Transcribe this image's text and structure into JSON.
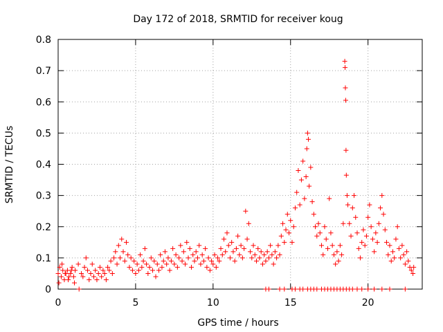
{
  "chart_data": {
    "type": "scatter",
    "title": "Day 172 of 2018, SRMTID for receiver koug",
    "xlabel": "GPS time / hours",
    "ylabel": "SRMTID / TECUs",
    "xlim": [
      0,
      23.5
    ],
    "ylim": [
      0,
      0.8
    ],
    "xticks": [
      0,
      5,
      10,
      15,
      20
    ],
    "xtick_labels": [
      "0",
      "5",
      "10",
      "15",
      "20"
    ],
    "yticks": [
      0,
      0.1,
      0.2,
      0.3,
      0.4,
      0.5,
      0.6,
      0.7,
      0.8
    ],
    "ytick_labels": [
      "0",
      "0.1",
      "0.2",
      "0.3",
      "0.4",
      "0.5",
      "0.6",
      "0.7",
      "0.8"
    ],
    "grid": true,
    "marker": "+",
    "color": "#ff0000",
    "series": [
      {
        "name": "SRMTID",
        "points": [
          [
            0.0,
            0.05
          ],
          [
            0.1,
            0.07
          ],
          [
            0.2,
            0.04
          ],
          [
            0.3,
            0.06
          ],
          [
            0.4,
            0.03
          ],
          [
            0.5,
            0.05
          ],
          [
            0.6,
            0.06
          ],
          [
            0.7,
            0.04
          ],
          [
            0.8,
            0.05
          ],
          [
            0.9,
            0.07
          ],
          [
            1.0,
            0.04
          ],
          [
            1.1,
            0.06
          ],
          [
            0.05,
            0.02
          ],
          [
            0.25,
            0.08
          ],
          [
            0.45,
            0.05
          ],
          [
            0.65,
            0.03
          ],
          [
            0.85,
            0.06
          ],
          [
            1.05,
            0.02
          ],
          [
            1.3,
            0.08
          ],
          [
            1.5,
            0.05
          ],
          [
            1.6,
            0.04
          ],
          [
            1.7,
            0.07
          ],
          [
            1.8,
            0.1
          ],
          [
            1.9,
            0.06
          ],
          [
            2.0,
            0.03
          ],
          [
            2.1,
            0.05
          ],
          [
            2.2,
            0.08
          ],
          [
            2.3,
            0.04
          ],
          [
            2.4,
            0.06
          ],
          [
            2.5,
            0.03
          ],
          [
            2.6,
            0.05
          ],
          [
            2.7,
            0.07
          ],
          [
            2.8,
            0.04
          ],
          [
            2.9,
            0.06
          ],
          [
            3.0,
            0.05
          ],
          [
            3.1,
            0.03
          ],
          [
            3.2,
            0.07
          ],
          [
            3.3,
            0.06
          ],
          [
            3.4,
            0.09
          ],
          [
            3.5,
            0.05
          ],
          [
            3.6,
            0.1
          ],
          [
            3.7,
            0.12
          ],
          [
            3.8,
            0.08
          ],
          [
            3.9,
            0.14
          ],
          [
            4.0,
            0.1
          ],
          [
            4.1,
            0.16
          ],
          [
            4.2,
            0.12
          ],
          [
            4.3,
            0.09
          ],
          [
            4.4,
            0.15
          ],
          [
            4.5,
            0.11
          ],
          [
            4.6,
            0.07
          ],
          [
            4.7,
            0.1
          ],
          [
            4.8,
            0.06
          ],
          [
            4.9,
            0.09
          ],
          [
            5.0,
            0.05
          ],
          [
            5.1,
            0.08
          ],
          [
            5.2,
            0.06
          ],
          [
            5.3,
            0.11
          ],
          [
            5.4,
            0.07
          ],
          [
            5.5,
            0.09
          ],
          [
            5.6,
            0.13
          ],
          [
            5.7,
            0.08
          ],
          [
            5.8,
            0.05
          ],
          [
            5.9,
            0.07
          ],
          [
            6.0,
            0.1
          ],
          [
            6.1,
            0.06
          ],
          [
            6.2,
            0.09
          ],
          [
            6.3,
            0.04
          ],
          [
            6.4,
            0.08
          ],
          [
            6.5,
            0.06
          ],
          [
            6.6,
            0.11
          ],
          [
            6.7,
            0.07
          ],
          [
            6.8,
            0.09
          ],
          [
            6.9,
            0.12
          ],
          [
            7.0,
            0.08
          ],
          [
            7.1,
            0.1
          ],
          [
            7.2,
            0.06
          ],
          [
            7.3,
            0.09
          ],
          [
            7.4,
            0.13
          ],
          [
            7.5,
            0.08
          ],
          [
            7.6,
            0.11
          ],
          [
            7.7,
            0.07
          ],
          [
            7.8,
            0.1
          ],
          [
            7.9,
            0.14
          ],
          [
            8.0,
            0.09
          ],
          [
            8.1,
            0.12
          ],
          [
            8.2,
            0.08
          ],
          [
            8.3,
            0.15
          ],
          [
            8.4,
            0.1
          ],
          [
            8.5,
            0.13
          ],
          [
            8.6,
            0.07
          ],
          [
            8.7,
            0.11
          ],
          [
            8.8,
            0.09
          ],
          [
            8.9,
            0.12
          ],
          [
            9.0,
            0.1
          ],
          [
            9.1,
            0.14
          ],
          [
            9.2,
            0.08
          ],
          [
            9.3,
            0.11
          ],
          [
            9.4,
            0.09
          ],
          [
            9.5,
            0.13
          ],
          [
            9.6,
            0.07
          ],
          [
            9.7,
            0.1
          ],
          [
            9.8,
            0.06
          ],
          [
            9.9,
            0.09
          ],
          [
            10.0,
            0.08
          ],
          [
            10.1,
            0.11
          ],
          [
            10.2,
            0.07
          ],
          [
            10.3,
            0.1
          ],
          [
            10.4,
            0.09
          ],
          [
            10.5,
            0.13
          ],
          [
            10.6,
            0.11
          ],
          [
            10.7,
            0.16
          ],
          [
            10.8,
            0.12
          ],
          [
            10.9,
            0.18
          ],
          [
            11.0,
            0.14
          ],
          [
            11.1,
            0.1
          ],
          [
            11.2,
            0.15
          ],
          [
            11.3,
            0.12
          ],
          [
            11.4,
            0.09
          ],
          [
            11.5,
            0.13
          ],
          [
            11.6,
            0.17
          ],
          [
            11.7,
            0.11
          ],
          [
            11.8,
            0.14
          ],
          [
            11.9,
            0.1
          ],
          [
            12.0,
            0.13
          ],
          [
            12.1,
            0.25
          ],
          [
            12.2,
            0.16
          ],
          [
            12.3,
            0.21
          ],
          [
            12.4,
            0.12
          ],
          [
            12.5,
            0.1
          ],
          [
            12.6,
            0.14
          ],
          [
            12.7,
            0.11
          ],
          [
            12.8,
            0.09
          ],
          [
            12.9,
            0.13
          ],
          [
            13.0,
            0.1
          ],
          [
            13.1,
            0.12
          ],
          [
            13.2,
            0.08
          ],
          [
            13.3,
            0.11
          ],
          [
            13.4,
            0.09
          ],
          [
            13.5,
            0.12
          ],
          [
            13.6,
            0.1
          ],
          [
            13.7,
            0.14
          ],
          [
            13.8,
            0.11
          ],
          [
            13.9,
            0.08
          ],
          [
            14.0,
            0.12
          ],
          [
            14.1,
            0.1
          ],
          [
            14.2,
            0.14
          ],
          [
            14.3,
            0.11
          ],
          [
            14.4,
            0.17
          ],
          [
            14.5,
            0.21
          ],
          [
            14.6,
            0.15
          ],
          [
            14.7,
            0.19
          ],
          [
            14.8,
            0.24
          ],
          [
            14.9,
            0.18
          ],
          [
            15.0,
            0.22
          ],
          [
            15.1,
            0.15
          ],
          [
            15.2,
            0.2
          ],
          [
            15.3,
            0.26
          ],
          [
            15.4,
            0.31
          ],
          [
            15.5,
            0.38
          ],
          [
            15.6,
            0.27
          ],
          [
            15.7,
            0.35
          ],
          [
            15.8,
            0.41
          ],
          [
            15.9,
            0.29
          ],
          [
            16.0,
            0.36
          ],
          [
            16.05,
            0.45
          ],
          [
            16.1,
            0.5
          ],
          [
            16.15,
            0.48
          ],
          [
            16.2,
            0.33
          ],
          [
            16.3,
            0.39
          ],
          [
            16.4,
            0.28
          ],
          [
            16.5,
            0.24
          ],
          [
            16.6,
            0.2
          ],
          [
            16.7,
            0.17
          ],
          [
            16.8,
            0.21
          ],
          [
            16.9,
            0.18
          ],
          [
            17.0,
            0.14
          ],
          [
            17.1,
            0.11
          ],
          [
            17.2,
            0.2
          ],
          [
            17.3,
            0.16
          ],
          [
            17.4,
            0.13
          ],
          [
            17.5,
            0.29
          ],
          [
            17.6,
            0.18
          ],
          [
            17.7,
            0.14
          ],
          [
            17.8,
            0.11
          ],
          [
            17.9,
            0.08
          ],
          [
            18.0,
            0.12
          ],
          [
            18.1,
            0.09
          ],
          [
            18.2,
            0.14
          ],
          [
            18.3,
            0.11
          ],
          [
            18.4,
            0.21
          ],
          [
            18.5,
            0.73
          ],
          [
            18.52,
            0.71
          ],
          [
            18.54,
            0.645
          ],
          [
            18.56,
            0.605
          ],
          [
            18.58,
            0.445
          ],
          [
            18.6,
            0.365
          ],
          [
            18.65,
            0.3
          ],
          [
            18.7,
            0.27
          ],
          [
            18.8,
            0.21
          ],
          [
            18.9,
            0.17
          ],
          [
            19.0,
            0.26
          ],
          [
            19.1,
            0.3
          ],
          [
            19.2,
            0.23
          ],
          [
            19.3,
            0.18
          ],
          [
            19.4,
            0.13
          ],
          [
            19.5,
            0.1
          ],
          [
            19.6,
            0.15
          ],
          [
            19.7,
            0.19
          ],
          [
            19.8,
            0.14
          ],
          [
            19.9,
            0.17
          ],
          [
            20.0,
            0.23
          ],
          [
            20.1,
            0.27
          ],
          [
            20.2,
            0.2
          ],
          [
            20.3,
            0.16
          ],
          [
            20.4,
            0.12
          ],
          [
            20.5,
            0.18
          ],
          [
            20.6,
            0.15
          ],
          [
            20.7,
            0.21
          ],
          [
            20.8,
            0.26
          ],
          [
            20.9,
            0.3
          ],
          [
            21.0,
            0.24
          ],
          [
            21.1,
            0.19
          ],
          [
            21.2,
            0.15
          ],
          [
            21.3,
            0.11
          ],
          [
            21.4,
            0.14
          ],
          [
            21.5,
            0.09
          ],
          [
            21.6,
            0.12
          ],
          [
            21.7,
            0.1
          ],
          [
            21.8,
            0.16
          ],
          [
            21.9,
            0.2
          ],
          [
            22.0,
            0.13
          ],
          [
            22.1,
            0.1
          ],
          [
            22.2,
            0.14
          ],
          [
            22.3,
            0.11
          ],
          [
            22.4,
            0.08
          ],
          [
            22.5,
            0.12
          ],
          [
            22.6,
            0.09
          ],
          [
            22.7,
            0.07
          ],
          [
            22.8,
            0.06
          ],
          [
            22.9,
            0.05
          ],
          [
            22.95,
            0.07
          ],
          [
            1.35,
            0.0
          ],
          [
            13.4,
            0.0
          ],
          [
            13.6,
            0.0
          ],
          [
            14.3,
            0.0
          ],
          [
            14.6,
            0.0
          ],
          [
            15.1,
            0.0
          ],
          [
            15.3,
            0.0
          ],
          [
            15.6,
            0.0
          ],
          [
            15.8,
            0.0
          ],
          [
            16.1,
            0.0
          ],
          [
            16.3,
            0.0
          ],
          [
            16.5,
            0.0
          ],
          [
            16.7,
            0.0
          ],
          [
            17.0,
            0.0
          ],
          [
            17.2,
            0.0
          ],
          [
            17.4,
            0.0
          ],
          [
            17.6,
            0.0
          ],
          [
            17.8,
            0.0
          ],
          [
            18.0,
            0.0
          ],
          [
            18.2,
            0.0
          ],
          [
            18.4,
            0.0
          ],
          [
            18.6,
            0.0
          ],
          [
            18.8,
            0.0
          ],
          [
            19.0,
            0.0
          ],
          [
            19.3,
            0.0
          ],
          [
            19.6,
            0.0
          ],
          [
            20.0,
            0.0
          ],
          [
            20.4,
            0.0
          ],
          [
            20.9,
            0.0
          ],
          [
            21.4,
            0.0
          ],
          [
            22.4,
            0.0
          ]
        ]
      }
    ]
  }
}
